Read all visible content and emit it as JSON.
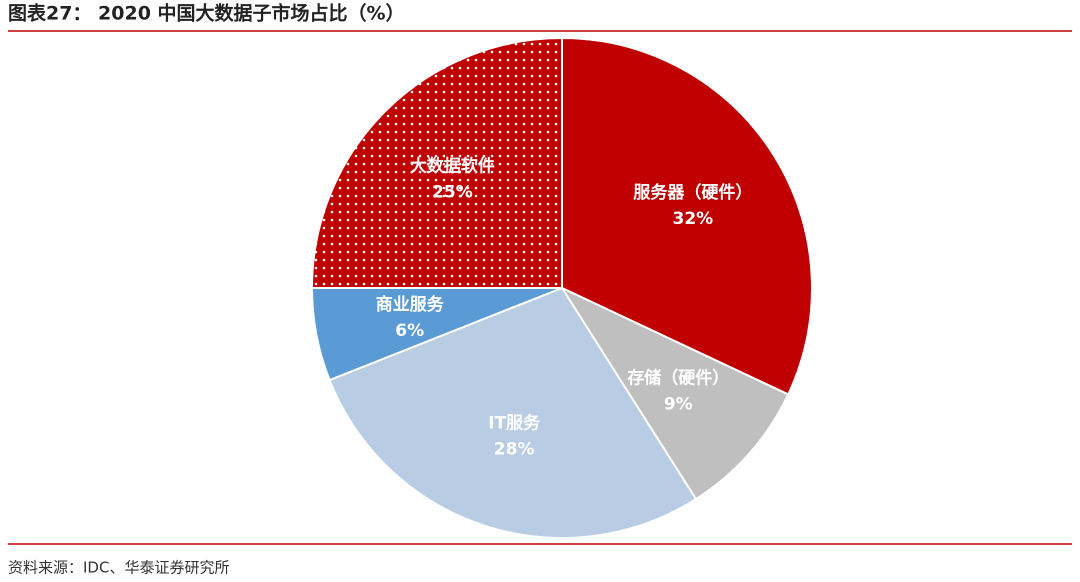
{
  "chart_data": {
    "type": "pie",
    "title": "图表27： 2020 中国大数据子市场占比（%）",
    "source": "资料来源：IDC、华泰证券研究所",
    "categories": [
      "服务器（硬件）",
      "存储（硬件）",
      "IT服务",
      "商业服务",
      "大数据软件"
    ],
    "values": [
      32,
      9,
      28,
      6,
      25
    ],
    "value_labels": [
      "32%",
      "9%",
      "28%",
      "6%",
      "25%"
    ],
    "colors": [
      "#c00000",
      "#bfbfbf",
      "#b8cce4",
      "#5b9bd5",
      "#c00000"
    ],
    "patterns": [
      "solid",
      "solid",
      "solid",
      "solid",
      "dots"
    ]
  }
}
